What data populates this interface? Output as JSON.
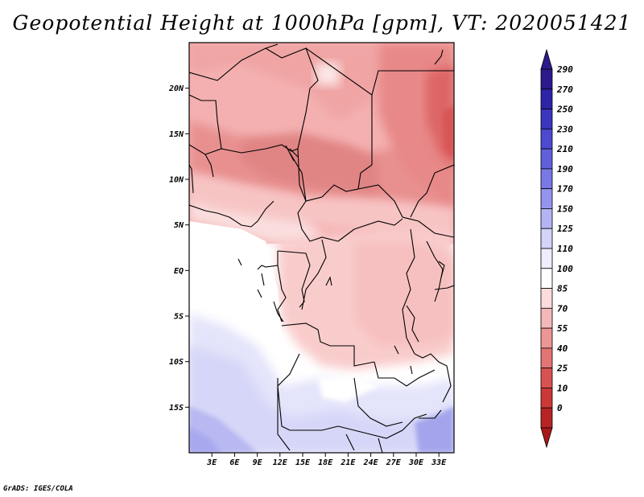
{
  "title": "Geopotential Height at 1000hPa [gpm], VT: 2020051421",
  "footer": "GrADS: IGES/COLA",
  "map": {
    "variable": "Geopotential Height",
    "level": "1000hPa",
    "units": "gpm",
    "valid_time": "2020051421",
    "lon_range": [
      0,
      35
    ],
    "lat_range": [
      -20,
      25
    ],
    "lat_ticks": [
      {
        "lat": 20,
        "label": "20N"
      },
      {
        "lat": 15,
        "label": "15N"
      },
      {
        "lat": 10,
        "label": "10N"
      },
      {
        "lat": 5,
        "label": "5N"
      },
      {
        "lat": 0,
        "label": "EQ"
      },
      {
        "lat": -5,
        "label": "5S"
      },
      {
        "lat": -10,
        "label": "10S"
      },
      {
        "lat": -15,
        "label": "15S"
      }
    ],
    "lon_ticks": [
      {
        "lon": 3,
        "label": "3E"
      },
      {
        "lon": 6,
        "label": "6E"
      },
      {
        "lon": 9,
        "label": "9E"
      },
      {
        "lon": 12,
        "label": "12E"
      },
      {
        "lon": 15,
        "label": "15E"
      },
      {
        "lon": 18,
        "label": "18E"
      },
      {
        "lon": 21,
        "label": "21E"
      },
      {
        "lon": 24,
        "label": "24E"
      },
      {
        "lon": 27,
        "label": "27E"
      },
      {
        "lon": 30,
        "label": "30E"
      },
      {
        "lon": 33,
        "label": "33E"
      }
    ]
  },
  "colorbar": {
    "levels": [
      {
        "label": "290",
        "color": "#2a1a8c"
      },
      {
        "label": "270",
        "color": "#2e24a8"
      },
      {
        "label": "250",
        "color": "#3a36c0"
      },
      {
        "label": "230",
        "color": "#4b4ad0"
      },
      {
        "label": "210",
        "color": "#6060dc"
      },
      {
        "label": "190",
        "color": "#7878e6"
      },
      {
        "label": "170",
        "color": "#9494ee"
      },
      {
        "label": "150",
        "color": "#b4b4f4"
      },
      {
        "label": "125",
        "color": "#d4d4fa"
      },
      {
        "label": "110",
        "color": "#eeeefe"
      },
      {
        "label": "100",
        "color": "#ffffff"
      },
      {
        "label": "85",
        "color": "#fcdcdc"
      },
      {
        "label": "70",
        "color": "#f5b8b8"
      },
      {
        "label": "55",
        "color": "#ec9696"
      },
      {
        "label": "40",
        "color": "#e27474"
      },
      {
        "label": "25",
        "color": "#d85252"
      },
      {
        "label": "10",
        "color": "#cc3838"
      },
      {
        "label": "0",
        "color": "#b82424"
      }
    ],
    "bottom_color": "#a81818"
  }
}
